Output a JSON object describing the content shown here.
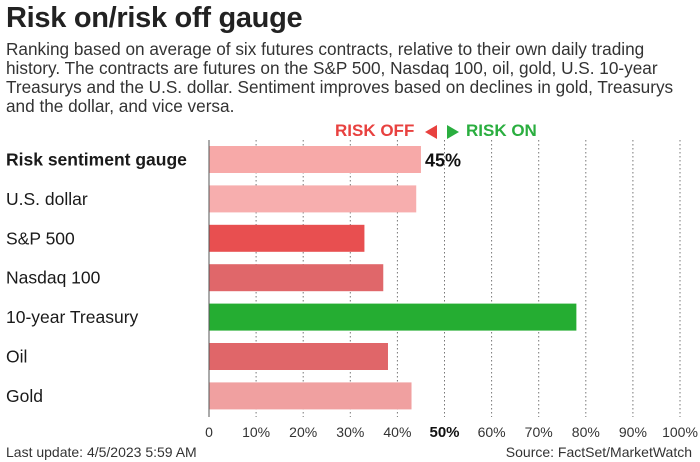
{
  "header": {
    "title": "Risk on/risk off gauge",
    "subtitle": "Ranking based on average of six futures contracts, relative to their own daily trading history. The contracts are futures on the S&P 500, Nasdaq 100, oil, gold, U.S. 10-year Treasurys and the U.S. dollar. Sentiment improves based on declines in gold, Treasurys and the dollar, and vice versa."
  },
  "legend": {
    "risk_off": "RISK OFF",
    "risk_on": "RISK ON",
    "risk_off_color": "#e8413f",
    "risk_on_color": "#2aae3f"
  },
  "footer": {
    "last_update": "Last update: 4/5/2023 5:59 AM",
    "source": "Source: FactSet/MarketWatch"
  },
  "chart_data": {
    "type": "bar",
    "orientation": "horizontal",
    "categories": [
      "Risk sentiment gauge",
      "U.S. dollar",
      "S&P 500",
      "Nasdaq 100",
      "10-year Treasury",
      "Oil",
      "Gold"
    ],
    "values": [
      45,
      44,
      33,
      37,
      78,
      38,
      43
    ],
    "colors": [
      "#f7a9a8",
      "#f7aeae",
      "#e84f50",
      "#e0676a",
      "#25ad32",
      "#e06669",
      "#f0a0a0"
    ],
    "value_labels": [
      "45%",
      "",
      "",
      "",
      "",
      "",
      ""
    ],
    "bold_category": "Risk sentiment gauge",
    "x_ticks": [
      "0",
      "10%",
      "20%",
      "30%",
      "40%",
      "50%",
      "60%",
      "70%",
      "80%",
      "90%",
      "100%"
    ],
    "highlight_tick": "50%",
    "xlim": [
      0,
      100
    ],
    "grid": "vertical dotted"
  }
}
